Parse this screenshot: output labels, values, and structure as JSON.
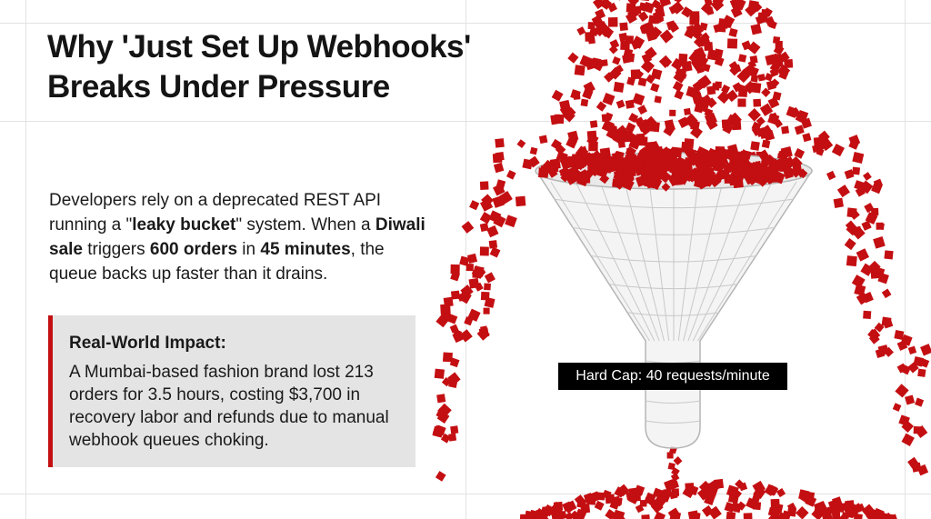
{
  "title": {
    "line1": "Why 'Just Set Up Webhooks'",
    "line2": "Breaks Under Pressure"
  },
  "intro": {
    "t1": "Developers rely on a deprecated REST API running a \"",
    "b1": "leaky bucket",
    "t2": "\" system. When a ",
    "b2": "Diwali sale",
    "t3": " triggers ",
    "b3": "600 orders",
    "t4": " in ",
    "b4": "45 minutes",
    "t5": ", the queue backs up faster than it drains."
  },
  "impact": {
    "title": "Real-World Impact:",
    "body": "A Mumbai-based fashion brand lost 213 orders for 3.5 hours, costing $3,700 in recovery labor and refunds due to manual webhook queues choking."
  },
  "funnel": {
    "label": "Hard Cap: 40 requests/minute",
    "particle_color": "#c30f12"
  }
}
